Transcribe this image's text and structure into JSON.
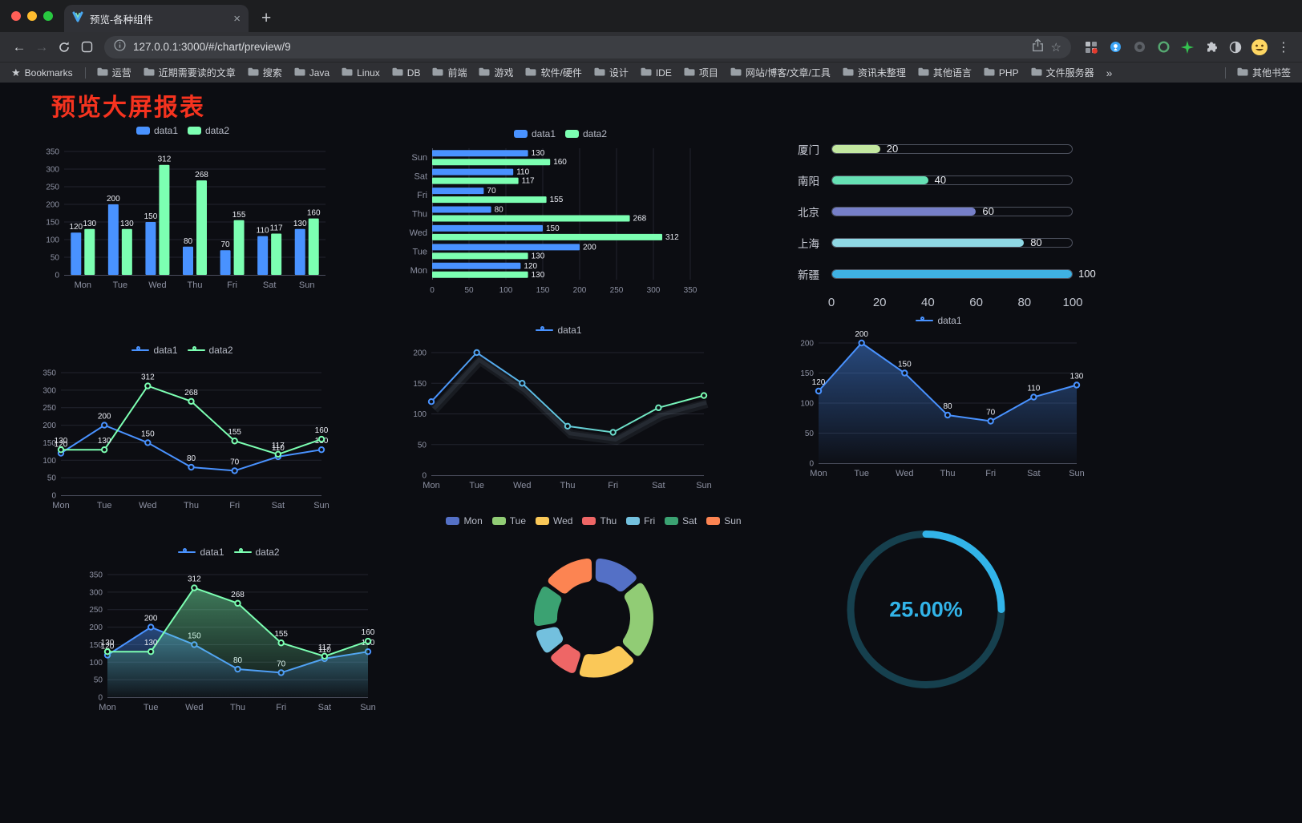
{
  "window": {
    "tab_title": "预览-各种组件",
    "url": "127.0.0.1:3000/#/chart/preview/9",
    "bookmarks_label": "Bookmarks",
    "bookmarks": [
      "运营",
      "近期需要读的文章",
      "搜索",
      "Java",
      "Linux",
      "DB",
      "前端",
      "游戏",
      "软件/硬件",
      "设计",
      "IDE",
      "项目",
      "网站/博客/文章/工具",
      "资讯未整理",
      "其他语言",
      "PHP",
      "文件服务器"
    ],
    "other_bookmarks": "其他书签"
  },
  "page": {
    "title": "预览大屏报表"
  },
  "chart_data": [
    {
      "type": "bar",
      "categories": [
        "Mon",
        "Tue",
        "Wed",
        "Thu",
        "Fri",
        "Sat",
        "Sun"
      ],
      "series": [
        {
          "name": "data1",
          "color": "#4992ff",
          "values": [
            120,
            200,
            150,
            80,
            70,
            110,
            130
          ]
        },
        {
          "name": "data2",
          "color": "#7cffb2",
          "values": [
            130,
            130,
            312,
            268,
            155,
            117,
            160
          ]
        }
      ],
      "ylim": [
        0,
        350
      ],
      "yticks": [
        0,
        50,
        100,
        150,
        200,
        250,
        300,
        350
      ],
      "legend_marker": "rect",
      "labels": true
    },
    {
      "type": "hbar",
      "categories": [
        "Mon",
        "Tue",
        "Wed",
        "Thu",
        "Fri",
        "Sat",
        "Sun"
      ],
      "series": [
        {
          "name": "data1",
          "color": "#4992ff",
          "values": [
            120,
            200,
            150,
            80,
            70,
            110,
            130
          ]
        },
        {
          "name": "data2",
          "color": "#7cffb2",
          "values": [
            130,
            130,
            312,
            268,
            155,
            117,
            160
          ]
        }
      ],
      "xlim": [
        0,
        350
      ],
      "xticks": [
        0,
        50,
        100,
        150,
        200,
        250,
        300,
        350
      ],
      "legend_marker": "rect",
      "labels": true
    },
    {
      "type": "capsule",
      "items": [
        {
          "label": "厦门",
          "value": 20,
          "color": "#c3e7a0"
        },
        {
          "label": "南阳",
          "value": 40,
          "color": "#66e0b4"
        },
        {
          "label": "北京",
          "value": 60,
          "color": "#767fc8"
        },
        {
          "label": "上海",
          "value": 80,
          "color": "#8fd8e4"
        },
        {
          "label": "新疆",
          "value": 100,
          "color": "#3fb1e3"
        }
      ],
      "max": 100,
      "xticks": [
        0,
        20,
        40,
        60,
        80,
        100
      ]
    },
    {
      "type": "line",
      "categories": [
        "Mon",
        "Tue",
        "Wed",
        "Thu",
        "Fri",
        "Sat",
        "Sun"
      ],
      "series": [
        {
          "name": "data1",
          "color": "#4992ff",
          "values": [
            120,
            200,
            150,
            80,
            70,
            110,
            130
          ]
        },
        {
          "name": "data2",
          "color": "#7cffb2",
          "values": [
            130,
            130,
            312,
            268,
            155,
            117,
            160
          ]
        }
      ],
      "ylim": [
        0,
        350
      ],
      "yticks": [
        0,
        50,
        100,
        150,
        200,
        250,
        300,
        350
      ],
      "legend_marker": "line",
      "labels": true
    },
    {
      "type": "line",
      "categories": [
        "Mon",
        "Tue",
        "Wed",
        "Thu",
        "Fri",
        "Sat",
        "Sun"
      ],
      "series": [
        {
          "name": "data1",
          "gradient": [
            "#4992ff",
            "#7cffb2"
          ],
          "values": [
            120,
            200,
            150,
            80,
            70,
            110,
            130
          ]
        }
      ],
      "ylim": [
        0,
        200
      ],
      "yticks": [
        0,
        50,
        100,
        150,
        200
      ],
      "legend_marker": "line",
      "labels": false,
      "shadow": true
    },
    {
      "type": "line",
      "categories": [
        "Mon",
        "Tue",
        "Wed",
        "Thu",
        "Fri",
        "Sat",
        "Sun"
      ],
      "series": [
        {
          "name": "data1",
          "color": "#4992ff",
          "values": [
            120,
            200,
            150,
            80,
            70,
            110,
            130
          ],
          "area": true
        }
      ],
      "ylim": [
        0,
        200
      ],
      "yticks": [
        0,
        50,
        100,
        150,
        200
      ],
      "legend_marker": "line",
      "labels": true
    },
    {
      "type": "line",
      "categories": [
        "Mon",
        "Tue",
        "Wed",
        "Thu",
        "Fri",
        "Sat",
        "Sun"
      ],
      "series": [
        {
          "name": "data1",
          "color": "#4992ff",
          "values": [
            120,
            200,
            150,
            80,
            70,
            110,
            130
          ],
          "area": true
        },
        {
          "name": "data2",
          "color": "#7cffb2",
          "values": [
            130,
            130,
            312,
            268,
            155,
            117,
            160
          ],
          "area": true
        }
      ],
      "ylim": [
        0,
        350
      ],
      "yticks": [
        0,
        50,
        100,
        150,
        200,
        250,
        300,
        350
      ],
      "legend_marker": "line",
      "labels": true
    },
    {
      "type": "donut",
      "items": [
        {
          "label": "Mon",
          "value": 120,
          "color": "#5470c6"
        },
        {
          "label": "Tue",
          "value": 200,
          "color": "#91cc75"
        },
        {
          "label": "Wed",
          "value": 150,
          "color": "#fac858"
        },
        {
          "label": "Thu",
          "value": 80,
          "color": "#ee6666"
        },
        {
          "label": "Fri",
          "value": 70,
          "color": "#73c0de"
        },
        {
          "label": "Sat",
          "value": 110,
          "color": "#3ba272"
        },
        {
          "label": "Sun",
          "value": 130,
          "color": "#fc8452"
        }
      ]
    },
    {
      "type": "gauge",
      "value": 25,
      "max": 100,
      "label": "25.00%",
      "color": "#32b4e9",
      "track_color": "#16404e"
    }
  ]
}
